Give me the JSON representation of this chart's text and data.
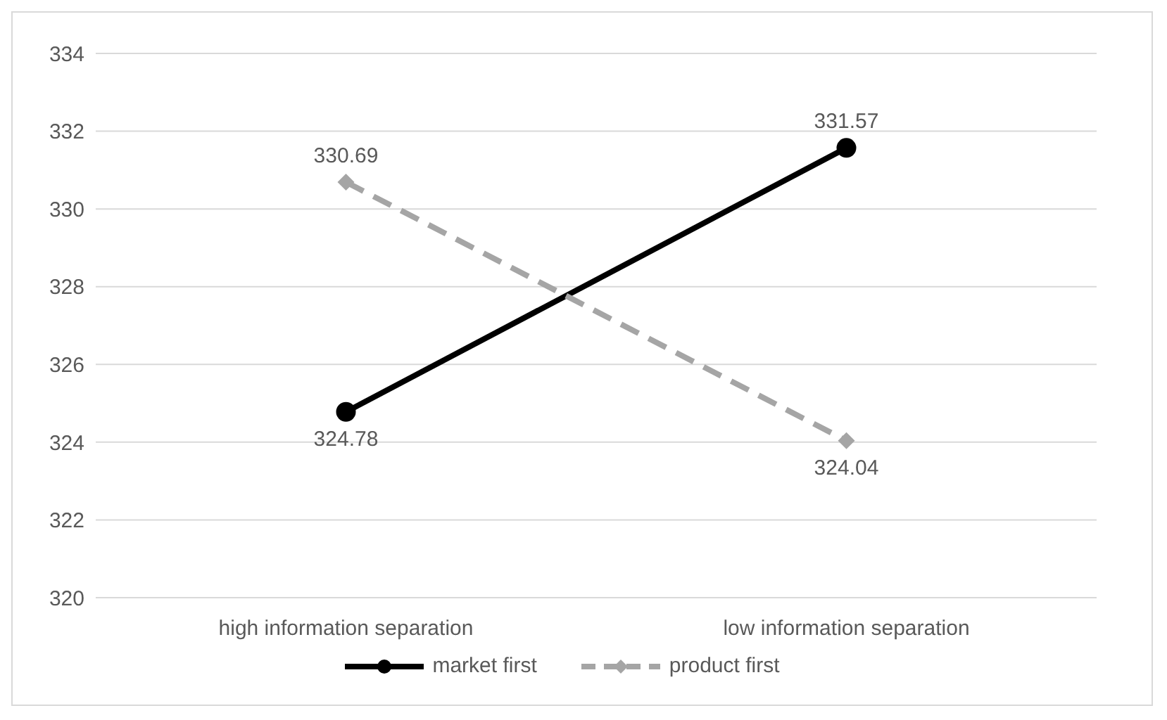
{
  "chart_data": {
    "type": "line",
    "categories": [
      "high information separation",
      "low information separation"
    ],
    "series": [
      {
        "name": "market first",
        "color": "#000000",
        "values": [
          324.78,
          331.57
        ],
        "marker": "circle",
        "line_style": "solid"
      },
      {
        "name": "product first",
        "color": "#a5a5a5",
        "values": [
          330.69,
          324.04
        ],
        "marker": "diamond",
        "line_style": "dashed"
      }
    ],
    "ylim": [
      320,
      334
    ],
    "yticks": [
      320,
      322,
      324,
      326,
      328,
      330,
      332,
      334
    ],
    "grid": "y",
    "legend": "bottom",
    "data_labels": true
  }
}
